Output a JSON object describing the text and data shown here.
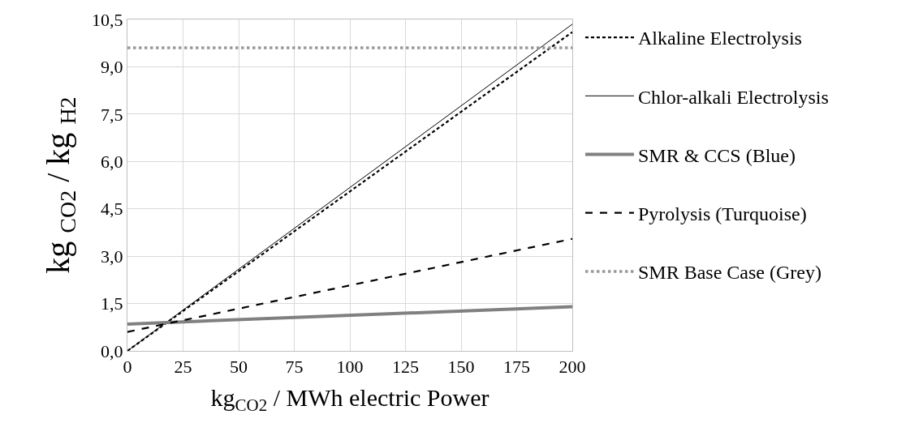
{
  "chart_data": {
    "type": "line",
    "xlabel": "kg$_{CO2}$ / MWh electric Power",
    "ylabel": "kg $_{CO2}$ / kg $_{H2}$",
    "x": [
      0,
      200
    ],
    "series": [
      {
        "name": "Alkaline Electrolysis",
        "color": "#000000",
        "line_style": "dashed",
        "values": [
          0,
          10.1
        ]
      },
      {
        "name": "Chlor-alkali Electrolysis",
        "color": "#000000",
        "line_style": "solid",
        "values": [
          0,
          10.35
        ]
      },
      {
        "name": "SMR & CCS (Blue)",
        "color": "#808080",
        "line_style": "solid",
        "values": [
          0.85,
          1.4
        ]
      },
      {
        "name": "Pyrolysis (Turquoise)",
        "color": "#000000",
        "line_style": "dashed",
        "values": [
          0.6,
          3.55
        ]
      },
      {
        "name": "SMR Base Case (Grey)",
        "color": "#999999",
        "line_style": "dotted",
        "values": [
          9.6,
          9.6
        ]
      }
    ],
    "xlim": [
      0,
      200
    ],
    "xticks": [
      0,
      25,
      50,
      75,
      100,
      125,
      150,
      175,
      200
    ],
    "ylim": [
      0,
      10.5
    ],
    "yticks": [
      {
        "value": 0,
        "label": "0,0"
      },
      {
        "value": 1.5,
        "label": "1,5"
      },
      {
        "value": 3,
        "label": "3,0"
      },
      {
        "value": 4.5,
        "label": "4,5"
      },
      {
        "value": 6,
        "label": "6,0"
      },
      {
        "value": 7.5,
        "label": "7,5"
      },
      {
        "value": 9,
        "label": "9,0"
      },
      {
        "value": 10.5,
        "label": "10,5"
      }
    ],
    "grid": true,
    "legend": "right",
    "marker": "none"
  }
}
